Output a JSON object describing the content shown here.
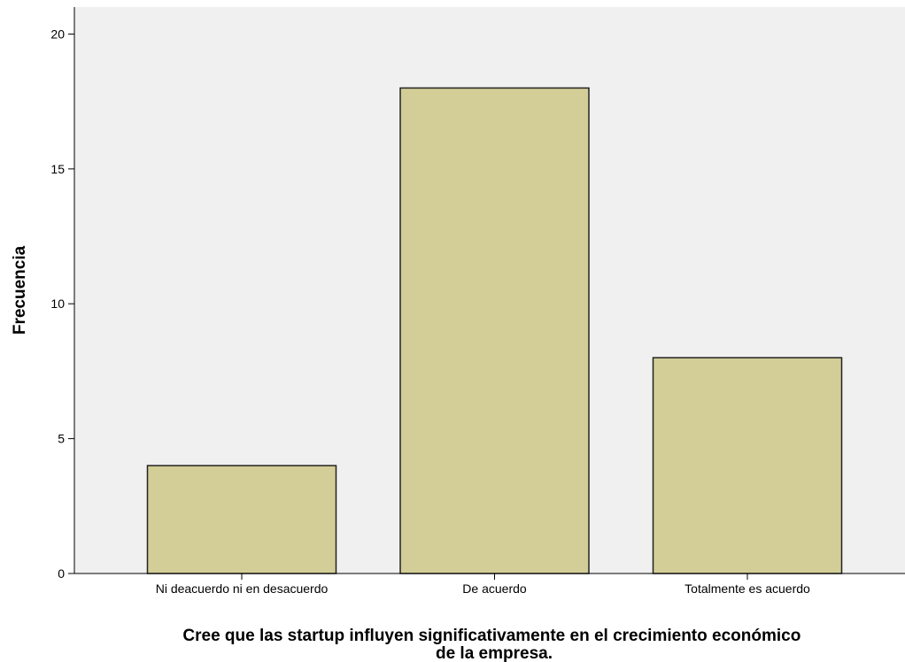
{
  "chart_data": {
    "type": "bar",
    "title": "",
    "categories": [
      "Ni deacuerdo ni en desacuerdo",
      "De acuerdo",
      "Totalmente es acuerdo"
    ],
    "values": [
      4,
      18,
      8
    ],
    "xlabel_lines": [
      "Cree que las startup influyen significativamente en el crecimiento económico",
      "de la empresa."
    ],
    "ylabel": "Frecuencia",
    "ylim": [
      0,
      21
    ],
    "yticks": [
      0,
      5,
      10,
      15,
      20
    ],
    "grid": false,
    "legend": "none",
    "colors": {
      "plot_background": "#F0F0F0",
      "bar_fill": "#D3CE97",
      "bar_stroke": "#222222",
      "axis": "#000000"
    }
  }
}
